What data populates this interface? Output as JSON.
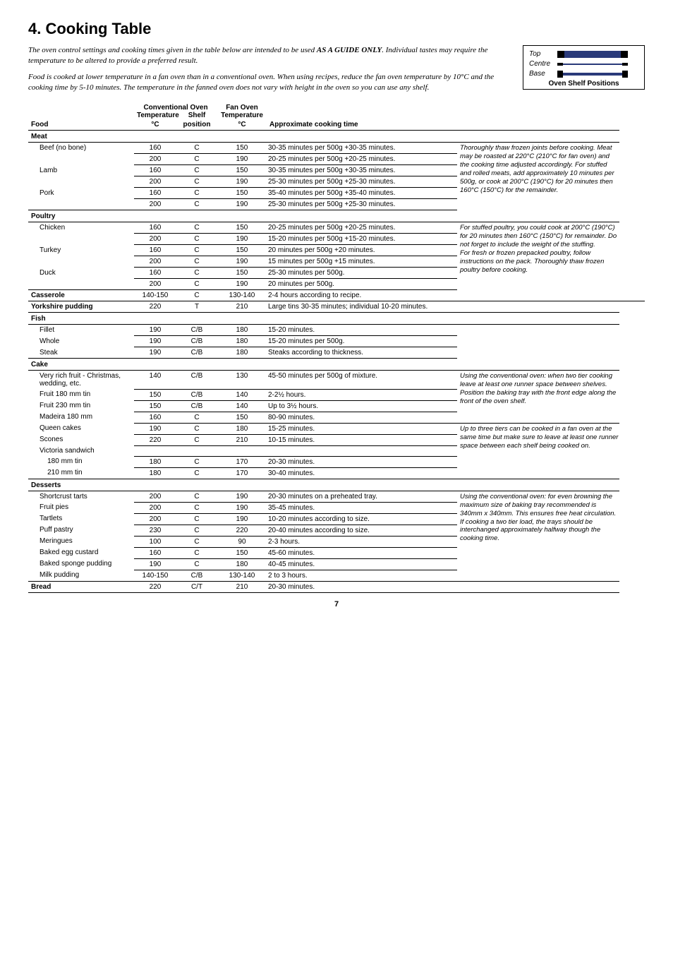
{
  "title": "4.  Cooking Table",
  "intro_p1_pre": "The oven control settings and cooking times given in the table below are intended to be used ",
  "intro_p1_bold": "AS A GUIDE ONLY",
  "intro_p1_post": ". Individual tastes may require the temperature to be altered to provide a preferred result.",
  "intro_p2": "Food is cooked at lower temperature in a fan oven than in a conventional oven. When using recipes, reduce the fan oven temperature by 10°C and the cooking time by 5-10 minutes. The temperature in the fanned oven does not vary with height in the oven so you can use any shelf.",
  "shelf_labels": {
    "top": "Top",
    "centre": "Centre",
    "base": "Base",
    "caption": "Oven Shelf Positions"
  },
  "head": {
    "conv_top": "Conventional Oven",
    "fan_top": "Fan Oven",
    "temp": "Temperature",
    "shelf": "Shelf",
    "pos": "position",
    "food": "Food",
    "degc": "°C",
    "approx": "Approximate cooking time"
  },
  "notes": {
    "meat": "Thoroughly thaw frozen joints before cooking. Meat may be roasted at 220°C (210°C for fan oven) and the cooking time adjusted accordingly. For stuffed and rolled meats, add approximately 10 minutes per 500g, or cook at 200°C (190°C) for 20 minutes then 160°C (150°C) for the remainder.",
    "poultry": "For stuffed poultry, you could cook at 200°C (190°C) for 20 minutes then 160°C (150°C) for remainder. Do not forget to include the weight of the stuffing.\nFor fresh or frozen prepacked poultry, follow instructions on the pack. Thoroughly thaw frozen poultry before cooking.",
    "cake1": "Using the conventional oven: when two tier cooking leave at least one runner space between shelves. Position the baking tray with the front edge along the front of the oven shelf.",
    "cake2": "Up to three tiers can be cooked in a fan oven at the same time but make sure to leave at least one runner space between each shelf being cooked on.",
    "dessert": "Using the conventional oven: for even browning the maximum size of baking tray recommended is 340mm x 340mm. This ensures free heat circulation.\nIf cooking a two tier load, the trays should be interchanged approximately halfway though the cooking time."
  },
  "cats": [
    {
      "name": "Meat",
      "note_key": "meat",
      "note_span": 7,
      "rows": [
        {
          "food": "Beef (no bone)",
          "c": "160",
          "p": "C",
          "f": "150",
          "t": "30-35 minutes per 500g +30-35 minutes."
        },
        {
          "food": "",
          "c": "200",
          "p": "C",
          "f": "190",
          "t": "20-25 minutes per 500g +20-25 minutes."
        },
        {
          "food": "Lamb",
          "c": "160",
          "p": "C",
          "f": "150",
          "t": "30-35 minutes per 500g +30-35 minutes."
        },
        {
          "food": "",
          "c": "200",
          "p": "C",
          "f": "190",
          "t": "25-30 minutes per 500g +25-30 minutes."
        },
        {
          "food": "Pork",
          "c": "160",
          "p": "C",
          "f": "150",
          "t": "35-40 minutes per 500g +35-40 minutes."
        },
        {
          "food": "",
          "c": "200",
          "p": "C",
          "f": "190",
          "t": "25-30 minutes per 500g +25-30 minutes."
        }
      ]
    },
    {
      "name": "Poultry",
      "note_key": "poultry",
      "note_span": 7,
      "rows": [
        {
          "food": "Chicken",
          "c": "160",
          "p": "C",
          "f": "150",
          "t": "20-25 minutes per 500g +20-25 minutes."
        },
        {
          "food": "",
          "c": "200",
          "p": "C",
          "f": "190",
          "t": "15-20 minutes per 500g +15-20 minutes."
        },
        {
          "food": "Turkey",
          "c": "160",
          "p": "C",
          "f": "150",
          "t": "20 minutes per 500g +20 minutes."
        },
        {
          "food": "",
          "c": "200",
          "p": "C",
          "f": "190",
          "t": "15 minutes per 500g +15 minutes."
        },
        {
          "food": "Duck",
          "c": "160",
          "p": "C",
          "f": "150",
          "t": "25-30 minutes per 500g."
        },
        {
          "food": "",
          "c": "200",
          "p": "C",
          "f": "190",
          "t": "20 minutes per 500g."
        }
      ]
    },
    {
      "name": "Casserole",
      "flat": true,
      "row": {
        "c": "140-150",
        "p": "C",
        "f": "130-140",
        "t": "2-4 hours according to recipe."
      }
    },
    {
      "name": "Yorkshire pudding",
      "flat": true,
      "row": {
        "c": "220",
        "p": "T",
        "f": "210",
        "t": "Large tins 30-35 minutes; individual 10-20 minutes."
      }
    },
    {
      "name": "Fish",
      "rows": [
        {
          "food": "Fillet",
          "c": "190",
          "p": "C/B",
          "f": "180",
          "t": "15-20 minutes."
        },
        {
          "food": "Whole",
          "c": "190",
          "p": "C/B",
          "f": "180",
          "t": "15-20 minutes per 500g."
        },
        {
          "food": "Steak",
          "c": "190",
          "p": "C/B",
          "f": "180",
          "t": "Steaks according to thickness."
        }
      ]
    },
    {
      "name": "Cake",
      "split_notes": true,
      "rows1": [
        {
          "food": "Very rich fruit - Christmas, wedding, etc.",
          "c": "140",
          "p": "C/B",
          "f": "130",
          "t": "45-50 minutes per 500g of mixture."
        },
        {
          "food": "Fruit 180 mm tin",
          "c": "150",
          "p": "C/B",
          "f": "140",
          "t": "2-2½ hours."
        },
        {
          "food": "Fruit 230 mm tin",
          "c": "150",
          "p": "C/B",
          "f": "140",
          "t": "Up to 3½ hours."
        },
        {
          "food": "Madeira 180 mm",
          "c": "160",
          "p": "C",
          "f": "150",
          "t": "80-90 minutes."
        }
      ],
      "rows2": [
        {
          "food": "Queen cakes",
          "c": "190",
          "p": "C",
          "f": "180",
          "t": "15-25 minutes."
        },
        {
          "food": "Scones",
          "c": "220",
          "p": "C",
          "f": "210",
          "t": "10-15 minutes."
        },
        {
          "food": "Victoria sandwich",
          "c": "",
          "p": "",
          "f": "",
          "t": ""
        },
        {
          "food": "    180 mm tin",
          "c": "180",
          "p": "C",
          "f": "170",
          "t": "20-30 minutes."
        },
        {
          "food": "    210 mm tin",
          "c": "180",
          "p": "C",
          "f": "170",
          "t": "30-40 minutes."
        }
      ]
    },
    {
      "name": "Desserts",
      "note_key": "dessert",
      "note_span": 8,
      "rows": [
        {
          "food": "Shortcrust tarts",
          "c": "200",
          "p": "C",
          "f": "190",
          "t": "20-30 minutes on a preheated tray."
        },
        {
          "food": "Fruit pies",
          "c": "200",
          "p": "C",
          "f": "190",
          "t": "35-45 minutes."
        },
        {
          "food": "Tartlets",
          "c": "200",
          "p": "C",
          "f": "190",
          "t": "10-20 minutes according to size."
        },
        {
          "food": "Puff pastry",
          "c": "230",
          "p": "C",
          "f": "220",
          "t": "20-40 minutes according to size."
        },
        {
          "food": "Meringues",
          "c": "100",
          "p": "C",
          "f": "90",
          "t": "2-3 hours."
        },
        {
          "food": "Baked egg custard",
          "c": "160",
          "p": "C",
          "f": "150",
          "t": "45-60 minutes."
        },
        {
          "food": "Baked sponge pudding",
          "c": "190",
          "p": "C",
          "f": "180",
          "t": "40-45 minutes."
        },
        {
          "food": "Milk pudding",
          "c": "140-150",
          "p": "C/B",
          "f": "130-140",
          "t": "2 to 3 hours."
        }
      ]
    },
    {
      "name": "Bread",
      "flat": true,
      "row": {
        "c": "220",
        "p": "C/T",
        "f": "210",
        "t": "20-30 minutes."
      }
    }
  ],
  "pagenum": "7"
}
